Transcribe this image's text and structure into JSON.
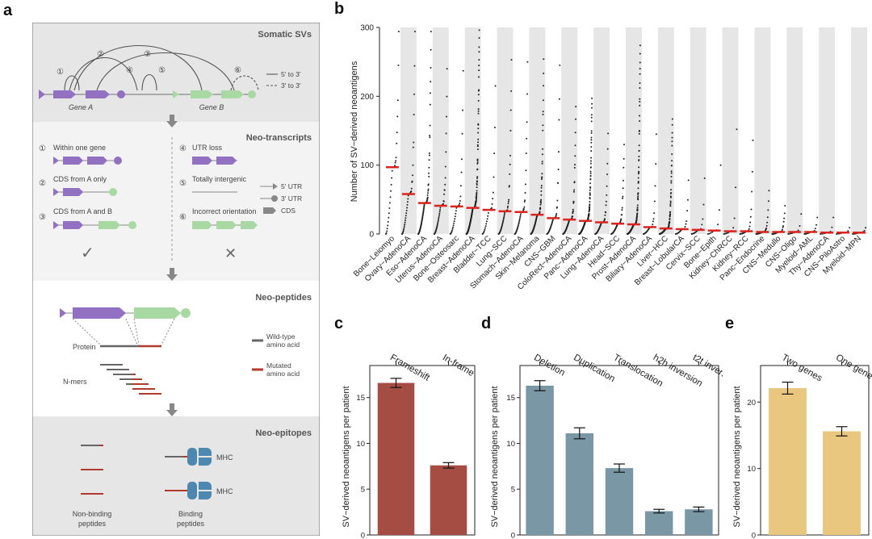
{
  "panel_letters": {
    "a": "a",
    "b": "b",
    "c": "c",
    "d": "d",
    "e": "e"
  },
  "schematic": {
    "somatic_svs": {
      "title": "Somatic SVs",
      "circled": [
        "①",
        "②",
        "③",
        "④",
        "⑤",
        "⑥"
      ],
      "gene_a": "Gene A",
      "gene_b": "Gene B",
      "legend_solid": "5' to 3'",
      "legend_dashed": "3' to 3'"
    },
    "neo_transcripts": {
      "title": "Neo-transcripts",
      "items": [
        {
          "num": "①",
          "label": "Within one gene"
        },
        {
          "num": "②",
          "label": "CDS from A only"
        },
        {
          "num": "③",
          "label": "CDS from A and B"
        },
        {
          "num": "④",
          "label": "UTR loss"
        },
        {
          "num": "⑤",
          "label": "Totally intergenic"
        },
        {
          "num": "⑥",
          "label": "Incorrect orientation"
        }
      ],
      "legend": [
        "5' UTR",
        "3' UTR",
        "CDS"
      ],
      "check": "✓",
      "cross": "✕"
    },
    "neo_peptides": {
      "title": "Neo-peptides",
      "protein": "Protein",
      "nmers": "N-mers",
      "wildtype_1": "Wild-type",
      "wildtype_2": "amino acid",
      "mutated_1": "Mutated",
      "mutated_2": "amino acid"
    },
    "neo_epitopes": {
      "title": "Neo-epitopes",
      "mhc": "MHC",
      "nonbinding_1": "Non-binding",
      "nonbinding_2": "peptides",
      "binding_1": "Binding",
      "binding_2": "peptides"
    }
  },
  "chart_data": [
    {
      "panel": "b",
      "type": "scatter",
      "ylabel": "Number of SV−derived neoantigens",
      "ylim": [
        0,
        300
      ],
      "yticks": [
        "0",
        "100",
        "200",
        "300"
      ],
      "categories": [
        "Bone−Leiomyo",
        "Ovary−AdenoCA",
        "Eso−AdenoCA",
        "Uterus−AdenoCA",
        "Bone−Osteosarc",
        "Breast−AdenoCA",
        "Bladder−TCC",
        "Lung−SCC",
        "Stomach−AdenoCA",
        "Skin−Melanoma",
        "CNS−GBM",
        "ColoRect−AdenoCA",
        "Panc−AdenoCA",
        "Lung−AdenoCA",
        "Head−SCC",
        "Prost−AdenoCA",
        "Biliary−AdenoCA",
        "Liver−HCC",
        "Breast−LobularCA",
        "Cervix−SCC",
        "Bone−Epith",
        "Kidney−ChRCC",
        "Kidney−RCC",
        "Panc−Endocrine",
        "CNS−Medullo",
        "CNS−Oligo",
        "Myeloid−AML",
        "Thy−AdenoCA",
        "CNS−PiloAstro",
        "Myeloid−MPN"
      ],
      "medians": [
        97,
        58,
        45,
        41,
        40,
        38,
        35,
        33,
        32,
        28,
        23,
        21,
        19,
        17,
        15,
        14,
        10,
        8,
        7,
        6,
        5,
        4,
        4,
        3,
        3,
        3,
        3,
        2,
        2,
        2
      ],
      "max_values": [
        294,
        294,
        294,
        240,
        237,
        296,
        215,
        253,
        250,
        254,
        245,
        185,
        197,
        146,
        130,
        274,
        145,
        167,
        78,
        81,
        100,
        152,
        136,
        63,
        41,
        29,
        24,
        24,
        9,
        9
      ],
      "counts": [
        30,
        40,
        80,
        45,
        30,
        200,
        25,
        45,
        40,
        100,
        40,
        70,
        200,
        45,
        50,
        190,
        25,
        150,
        20,
        15,
        10,
        12,
        25,
        30,
        30,
        10,
        15,
        10,
        10,
        12
      ]
    },
    {
      "panel": "c",
      "type": "bar",
      "categories": [
        "Frameshift",
        "In-frame"
      ],
      "values": [
        16.6,
        7.6
      ],
      "errors": [
        0.5,
        0.3
      ],
      "ylabel": "SV−derived neoantigens per patient",
      "ylim": [
        0,
        18.5
      ],
      "yticks": [
        "0",
        "5",
        "10",
        "15"
      ],
      "color": "#a54d43"
    },
    {
      "panel": "d",
      "type": "bar",
      "categories": [
        "Deletion",
        "Duplication",
        "Translocation",
        "h2h inversion",
        "t2t inversion"
      ],
      "values": [
        16.3,
        11.1,
        7.3,
        2.6,
        2.8
      ],
      "errors": [
        0.55,
        0.6,
        0.45,
        0.2,
        0.25
      ],
      "ylabel": "SV−derived neoantigens per patient",
      "ylim": [
        0,
        18.5
      ],
      "yticks": [
        "0",
        "5",
        "10",
        "15"
      ],
      "color": "#7a97a6"
    },
    {
      "panel": "e",
      "type": "bar",
      "categories": [
        "Two genes",
        "One gene"
      ],
      "values": [
        22.1,
        15.6
      ],
      "errors": [
        0.9,
        0.7
      ],
      "ylabel": "SV−derived neoantigens per patient",
      "ylim": [
        0,
        25.5
      ],
      "yticks": [
        "0",
        "10",
        "20"
      ],
      "color": "#e9c77e"
    }
  ],
  "colors": {
    "purple": "#9270c2",
    "green": "#a9d9a3",
    "grey_band": "#e6e6e6",
    "median": "#e0211c",
    "mutated": "#b03a2e",
    "wildtype": "#666666",
    "mhc": "#4d88b1"
  }
}
